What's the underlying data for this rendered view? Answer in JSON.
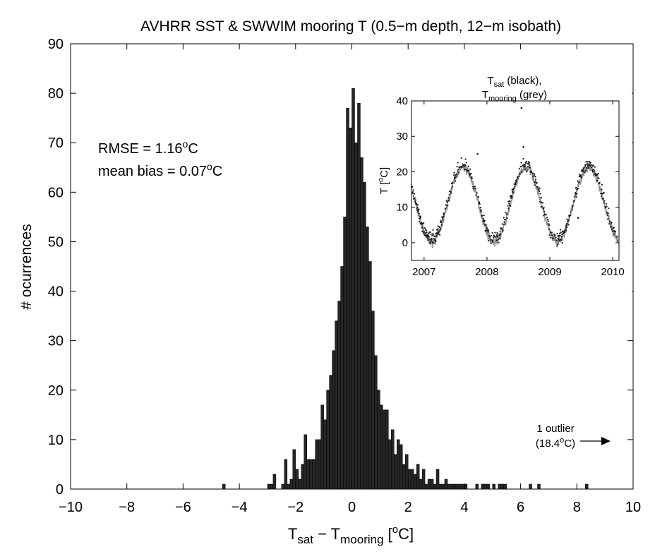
{
  "chart_data": [
    {
      "type": "bar",
      "title": "AVHRR SST & SWWIM mooring T (0.5−m depth, 12−m isobath)",
      "xlabel": {
        "prefix": "T",
        "sub1": "sat",
        "mid": " − T",
        "sub2": "mooring",
        "open": " [",
        "sup": "o",
        "close": "C]"
      },
      "ylabel": "# ocurrences",
      "xlim": [
        -10,
        10
      ],
      "ylim": [
        0,
        90
      ],
      "xticks": [
        "−10",
        "−8",
        "−6",
        "−4",
        "−2",
        "0",
        "2",
        "4",
        "6",
        "8",
        "10"
      ],
      "yticks": [
        "0",
        "10",
        "20",
        "30",
        "40",
        "50",
        "60",
        "70",
        "80",
        "90"
      ],
      "bin_width": 0.1,
      "bar_color": "#262626",
      "bins": [
        [
          -4.55,
          1
        ],
        [
          -2.95,
          1
        ],
        [
          -2.85,
          1
        ],
        [
          -2.75,
          3
        ],
        [
          -2.45,
          1
        ],
        [
          -2.35,
          6
        ],
        [
          -2.25,
          1
        ],
        [
          -2.15,
          2
        ],
        [
          -2.05,
          8
        ],
        [
          -1.95,
          4
        ],
        [
          -1.85,
          2
        ],
        [
          -1.75,
          5
        ],
        [
          -1.65,
          11
        ],
        [
          -1.55,
          6
        ],
        [
          -1.45,
          6
        ],
        [
          -1.35,
          6
        ],
        [
          -1.25,
          10
        ],
        [
          -1.15,
          10
        ],
        [
          -1.05,
          17
        ],
        [
          -0.95,
          14
        ],
        [
          -0.85,
          20
        ],
        [
          -0.75,
          23
        ],
        [
          -0.65,
          28
        ],
        [
          -0.55,
          34
        ],
        [
          -0.45,
          38
        ],
        [
          -0.35,
          45
        ],
        [
          -0.25,
          55
        ],
        [
          -0.15,
          77
        ],
        [
          -0.05,
          73
        ],
        [
          0.05,
          81
        ],
        [
          0.15,
          70
        ],
        [
          0.25,
          78
        ],
        [
          0.35,
          67
        ],
        [
          0.45,
          62
        ],
        [
          0.55,
          53
        ],
        [
          0.65,
          46
        ],
        [
          0.75,
          36
        ],
        [
          0.85,
          27
        ],
        [
          0.95,
          20
        ],
        [
          1.05,
          17
        ],
        [
          1.15,
          16
        ],
        [
          1.25,
          16
        ],
        [
          1.35,
          10
        ],
        [
          1.45,
          12
        ],
        [
          1.55,
          7
        ],
        [
          1.65,
          10
        ],
        [
          1.75,
          9
        ],
        [
          1.85,
          5
        ],
        [
          1.95,
          7
        ],
        [
          2.05,
          4
        ],
        [
          2.15,
          4
        ],
        [
          2.25,
          3
        ],
        [
          2.35,
          5
        ],
        [
          2.45,
          2
        ],
        [
          2.55,
          4
        ],
        [
          2.65,
          1
        ],
        [
          2.75,
          2
        ],
        [
          2.85,
          2
        ],
        [
          2.95,
          1
        ],
        [
          3.05,
          4
        ],
        [
          3.15,
          1
        ],
        [
          3.25,
          1
        ],
        [
          3.35,
          2
        ],
        [
          3.45,
          1
        ],
        [
          3.55,
          1
        ],
        [
          3.65,
          1
        ],
        [
          3.75,
          1
        ],
        [
          3.85,
          1
        ],
        [
          3.95,
          1
        ],
        [
          4.05,
          1
        ],
        [
          4.45,
          1
        ],
        [
          4.65,
          1
        ],
        [
          4.75,
          1
        ],
        [
          4.85,
          1
        ],
        [
          5.05,
          1
        ],
        [
          5.25,
          1
        ],
        [
          5.35,
          1
        ],
        [
          5.45,
          1
        ],
        [
          6.35,
          1
        ],
        [
          6.65,
          1
        ],
        [
          8.35,
          1
        ]
      ],
      "annotations": {
        "rmse": {
          "text": "RMSE = 1.16",
          "sup": "o",
          "unit": "C"
        },
        "bias": {
          "text": "mean bias = 0.07",
          "sup": "o",
          "unit": "C"
        },
        "outlier_line1": "1 outlier",
        "outlier_line2": {
          "open": "(18.4",
          "sup": "o",
          "close": "C)"
        }
      }
    },
    {
      "type": "scatter",
      "title_line1": {
        "prefix": "T",
        "sub": "sat",
        "suffix": " (black),"
      },
      "title_line2": {
        "prefix": "T",
        "sub": "mooring",
        "suffix": " (grey)"
      },
      "ylabel": {
        "prefix": "T [",
        "sup": "o",
        "close": "C]"
      },
      "xlim": [
        2006.8,
        2010.1
      ],
      "ylim": [
        -5,
        40
      ],
      "xticks": [
        "2007",
        "2008",
        "2009",
        "2010"
      ],
      "yticks": [
        "0",
        "10",
        "20",
        "30",
        "40"
      ],
      "series": [
        {
          "color": "#1a1a1a",
          "values": "seasonal cycle of satellite SST, min ~1 °C, max ~23 °C"
        },
        {
          "color": "#8c8c8c",
          "values": "seasonal cycle of mooring T, min ~-1 °C, max ~22 °C"
        }
      ],
      "seasonal_model": {
        "mean": 11.5,
        "amplitude": 10.5,
        "peak_time": 2007.62
      },
      "outliers": [
        [
          2008.55,
          38
        ],
        [
          2008.58,
          27
        ],
        [
          2007.85,
          25
        ],
        [
          2009.45,
          7
        ]
      ]
    }
  ]
}
